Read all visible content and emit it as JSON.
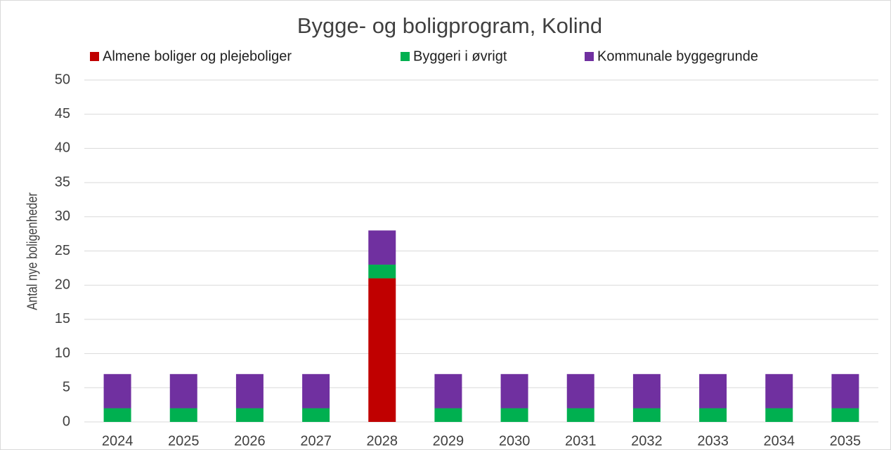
{
  "chart_data": {
    "type": "stacked-bar",
    "title": "Bygge- og boligprogram, Kolind",
    "y_label": "Antal nye boligenheder",
    "categories": [
      "2024",
      "2025",
      "2026",
      "2027",
      "2028",
      "2029",
      "2030",
      "2031",
      "2032",
      "2033",
      "2034",
      "2035"
    ],
    "series": [
      {
        "name": "Almene boliger og plejeboliger",
        "color": "#c00000",
        "values": [
          0,
          0,
          0,
          0,
          21,
          0,
          0,
          0,
          0,
          0,
          0,
          0
        ]
      },
      {
        "name": "Byggeri i øvrigt",
        "color": "#00b050",
        "values": [
          2,
          2,
          2,
          2,
          2,
          2,
          2,
          2,
          2,
          2,
          2,
          2
        ]
      },
      {
        "name": "Kommunale byggegrunde",
        "color": "#7030a0",
        "values": [
          5,
          5,
          5,
          5,
          5,
          5,
          5,
          5,
          5,
          5,
          5,
          5
        ]
      }
    ],
    "ylim": [
      0,
      50
    ],
    "yticks": [
      0,
      5,
      10,
      15,
      20,
      25,
      30,
      35,
      40,
      45,
      50
    ],
    "grid": true
  }
}
